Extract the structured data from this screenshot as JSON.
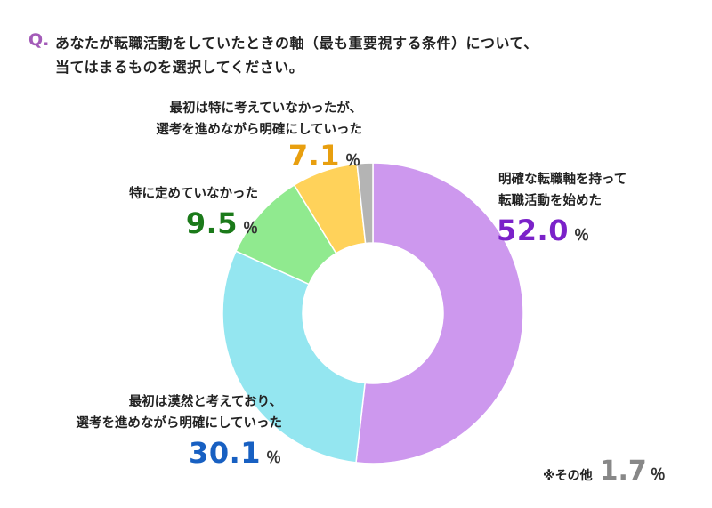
{
  "question": {
    "prefix": "Q.",
    "line1": "あなたが転職活動をしていたときの軸（最も重要視する条件）について、",
    "line2": "当てはまるものを選択してください。"
  },
  "chart_data": {
    "type": "pie",
    "unit": "％",
    "slices": [
      {
        "label_lines": [
          "明確な転職軸を持って",
          "転職活動を始めた"
        ],
        "value": 52.0,
        "display": "52.0",
        "color": "#cd98ee",
        "label_color": "#7b22c9"
      },
      {
        "label_lines": [
          "最初は漠然と考えており、",
          "選考を進めながら明確にしていった"
        ],
        "value": 30.1,
        "display": "30.1",
        "color": "#94e6f0",
        "label_color": "#1860c2"
      },
      {
        "label_lines": [
          "特に定めていなかった"
        ],
        "value": 9.5,
        "display": "9.5",
        "color": "#90ea8f",
        "label_color": "#1b7a1a"
      },
      {
        "label_lines": [
          "最初は特に考えていなかったが、",
          "選考を進めながら明確にしていった"
        ],
        "value": 7.1,
        "display": "7.1",
        "color": "#ffd25a",
        "label_color": "#e89f0f"
      },
      {
        "label_lines": [
          "※その他"
        ],
        "value": 1.7,
        "display": "1.7",
        "color": "#b4b4b4",
        "label_color": "#888888"
      }
    ]
  }
}
